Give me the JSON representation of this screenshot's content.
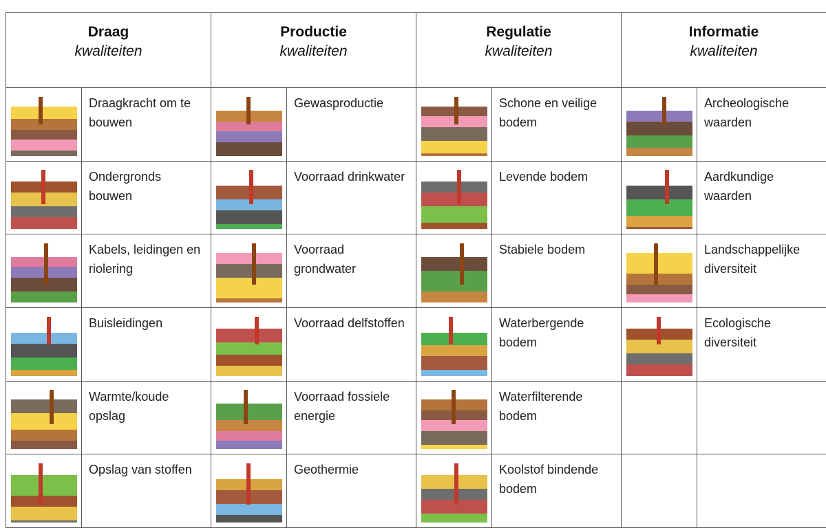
{
  "columns": [
    {
      "title": "Draag",
      "subtitle": "kwaliteiten",
      "items": [
        "Draagkracht om te bouwen",
        "Ondergronds bouwen",
        "Kabels, leidingen en riolering",
        "Buisleidingen",
        "Warmte/koude opslag",
        "Opslag van stoffen"
      ]
    },
    {
      "title": "Productie",
      "subtitle": "kwaliteiten",
      "items": [
        "Gewasproductie",
        "Voorraad drinkwater",
        "Voorraad grondwater",
        "Voorraad delfstoffen",
        "Voorraad fossiele energie",
        "Geothermie"
      ]
    },
    {
      "title": "Regulatie",
      "subtitle": "kwaliteiten",
      "items": [
        "Schone en veilige bodem",
        "Levende bodem",
        "Stabiele bodem",
        "Waterbergende bodem",
        "Waterfilterende bodem",
        "Koolstof bindende bodem"
      ]
    },
    {
      "title": "Informatie",
      "subtitle": "kwaliteiten",
      "items": [
        "Archeologische waarden",
        "Aardkundige waarden",
        "Landschappelijke diversiteit",
        "Ecologische diversiteit"
      ]
    }
  ]
}
